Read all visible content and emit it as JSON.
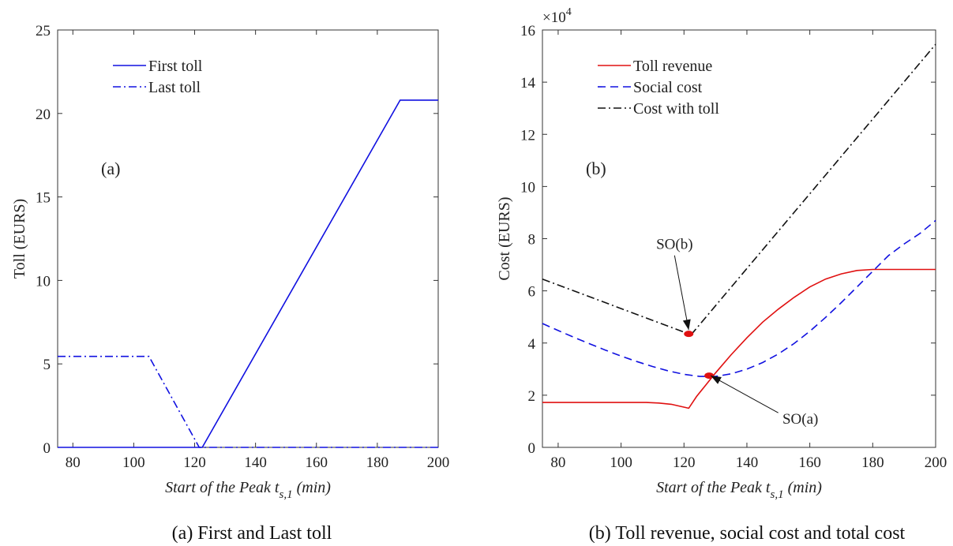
{
  "chart_data": [
    {
      "type": "line",
      "panel_label": "(a)",
      "caption": "(a) First and Last toll",
      "xlabel": "Start of the Peak t",
      "xlabel_sub": "s,1",
      "xlabel_unit": "(min)",
      "ylabel": "Toll (EURS)",
      "xlim": [
        75,
        200
      ],
      "ylim": [
        0,
        25
      ],
      "xticks": [
        80,
        100,
        120,
        140,
        160,
        180,
        200
      ],
      "yticks": [
        0,
        5,
        10,
        15,
        20,
        25
      ],
      "legend_position": "top-left",
      "grid": false,
      "series": [
        {
          "name": "First toll",
          "color": "#1010e0",
          "style": "solid",
          "x": [
            75,
            122.5,
            187.5,
            200
          ],
          "y": [
            0,
            0,
            20.8,
            20.8
          ]
        },
        {
          "name": "Last toll",
          "color": "#1010e0",
          "style": "dashdot",
          "x": [
            75,
            105,
            121.5,
            200
          ],
          "y": [
            5.45,
            5.45,
            0,
            0
          ]
        }
      ]
    },
    {
      "type": "line",
      "panel_label": "(b)",
      "caption": "(b) Toll revenue, social cost and total cost",
      "xlabel": "Start of the Peak t",
      "xlabel_sub": "s,1",
      "xlabel_unit": "(min)",
      "ylabel": "Cost (EURS)",
      "y_multiplier_base": "×10",
      "y_multiplier_exp": "4",
      "xlim": [
        75,
        200
      ],
      "ylim": [
        0,
        16
      ],
      "xticks": [
        80,
        100,
        120,
        140,
        160,
        180,
        200
      ],
      "yticks": [
        0,
        2,
        4,
        6,
        8,
        10,
        12,
        14,
        16
      ],
      "legend_position": "top-left",
      "grid": false,
      "series": [
        {
          "name": "Toll revenue",
          "color": "#e01010",
          "style": "solid",
          "x": [
            75,
            100,
            108,
            112,
            116,
            119,
            121.5,
            124,
            127,
            130,
            135,
            140,
            145,
            150,
            155,
            160,
            165,
            170,
            175,
            180,
            185,
            200
          ],
          "y": [
            1.72,
            1.72,
            1.72,
            1.7,
            1.65,
            1.57,
            1.5,
            1.95,
            2.4,
            2.85,
            3.55,
            4.2,
            4.8,
            5.3,
            5.75,
            6.15,
            6.45,
            6.65,
            6.78,
            6.82,
            6.82,
            6.82
          ]
        },
        {
          "name": "Social cost",
          "color": "#1010e0",
          "style": "dashed",
          "x": [
            75,
            80,
            85,
            90,
            95,
            100,
            105,
            110,
            115,
            120,
            125,
            130,
            135,
            140,
            145,
            150,
            155,
            160,
            165,
            170,
            175,
            180,
            185,
            190,
            195,
            200
          ],
          "y": [
            4.75,
            4.48,
            4.22,
            3.97,
            3.73,
            3.5,
            3.29,
            3.1,
            2.93,
            2.8,
            2.72,
            2.72,
            2.82,
            3.0,
            3.25,
            3.58,
            3.98,
            4.45,
            4.98,
            5.55,
            6.15,
            6.75,
            7.35,
            7.8,
            8.2,
            8.7
          ]
        },
        {
          "name": "Cost with toll",
          "color": "#111111",
          "style": "dashdot",
          "x": [
            75,
            121.5,
            122.5,
            200
          ],
          "y": [
            6.45,
            4.35,
            4.35,
            15.45
          ]
        }
      ],
      "points": [
        {
          "x": 121.5,
          "y": 4.35,
          "color": "#e01010"
        },
        {
          "x": 128,
          "y": 2.75,
          "color": "#e01010"
        }
      ],
      "annotations": [
        {
          "text": "SO(b)",
          "text_x": 117,
          "text_y": 7.6,
          "target_x": 121.5,
          "target_y": 4.5
        },
        {
          "text": "SO(a)",
          "text_x": 157,
          "text_y": 0.9,
          "target_x": 128.5,
          "target_y": 2.75
        }
      ]
    }
  ]
}
